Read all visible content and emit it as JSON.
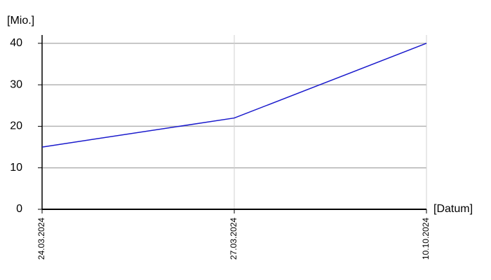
{
  "chart_data": {
    "type": "line",
    "y_label": "[Mio.]",
    "x_label": "[Datum]",
    "categories": [
      "24.03.2024",
      "27.03.2024",
      "10.10.2024"
    ],
    "series": [
      {
        "name": null,
        "color": "#1a1acc",
        "values": [
          15,
          22,
          40
        ]
      }
    ],
    "ylim": [
      0,
      42
    ],
    "yticks": [
      0,
      10,
      20,
      30,
      40
    ],
    "grid": true
  }
}
